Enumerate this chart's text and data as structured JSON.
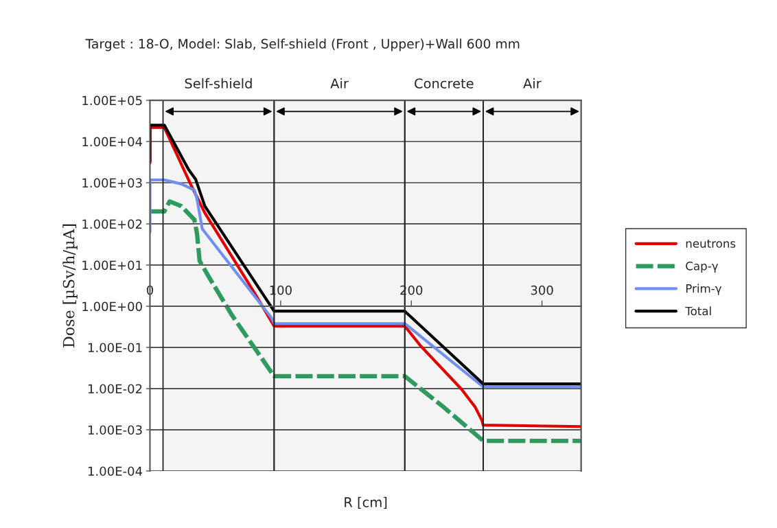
{
  "chart_data": {
    "type": "line",
    "title": "Target : 18-O, Model: Slab, Self-shield (Front , Upper)+Wall 600 mm",
    "xlabel": "R [cm]",
    "ylabel": "Dose [µSv/h/µA]",
    "log": "y",
    "xlim": [
      0,
      330
    ],
    "xticks": [
      0,
      100,
      200,
      300
    ],
    "ylim": [
      0.0001,
      100000
    ],
    "yticks": [
      {
        "value": 100000,
        "label": "1.00E+05"
      },
      {
        "value": 10000,
        "label": "1.00E+04"
      },
      {
        "value": 1000,
        "label": "1.00E+03"
      },
      {
        "value": 100,
        "label": "1.00E+02"
      },
      {
        "value": 10,
        "label": "1.00E+01"
      },
      {
        "value": 1,
        "label": "1.00E+00"
      },
      {
        "value": 0.1,
        "label": "1.00E-01"
      },
      {
        "value": 0.01,
        "label": "1.00E-02"
      },
      {
        "value": 0.001,
        "label": "1.00E-03"
      },
      {
        "value": 0.0001,
        "label": "1.00E-04"
      }
    ],
    "grid": "y",
    "legend": "right",
    "bands": [
      {
        "axis": "x",
        "from": 10,
        "to": 95,
        "label": "Self-shield",
        "color": "#f4f4f4"
      },
      {
        "axis": "x",
        "from": 95,
        "to": 195,
        "label": "Air",
        "color": "#f4f4f4"
      },
      {
        "axis": "x",
        "from": 195,
        "to": 255,
        "label": "Concrete",
        "color": "#f4f4f4"
      },
      {
        "axis": "x",
        "from": 255,
        "to": 330,
        "label": "Air",
        "color": "#f4f4f4"
      }
    ],
    "series": [
      {
        "name": "neutrons",
        "color": "#e00000",
        "line_style": "solid",
        "x": [
          0,
          0,
          11,
          31,
          42,
          80,
          95,
          195,
          207,
          238.5,
          249,
          254,
          255,
          330
        ],
        "values": [
          3000,
          22000,
          22000,
          930,
          185,
          2.1,
          0.33,
          0.33,
          0.11,
          0.0096,
          0.0035,
          0.0017,
          0.0013,
          0.0012
        ]
      },
      {
        "name": "Cap-γ",
        "color": "#2e9a5e",
        "line_style": "dashed",
        "x": [
          0,
          11,
          15,
          24,
          34,
          36,
          38,
          45,
          63,
          95,
          195,
          225,
          255,
          330
        ],
        "values": [
          200,
          200,
          350,
          270,
          126,
          58,
          12.6,
          5.2,
          0.59,
          0.02,
          0.02,
          0.0035,
          0.00054,
          0.00054
        ]
      },
      {
        "name": "Prim-γ",
        "color": "#7090f0",
        "line_style": "solid",
        "x": [
          0,
          0,
          11,
          24,
          34,
          36,
          40,
          93,
          95,
          195,
          255,
          330
        ],
        "values": [
          63,
          1170,
          1170,
          930,
          660,
          400,
          76,
          0.52,
          0.38,
          0.38,
          0.011,
          0.011
        ]
      },
      {
        "name": "Total",
        "color": "#000000",
        "line_style": "solid",
        "x": [
          0,
          0,
          11,
          29.5,
          35,
          42,
          95,
          195,
          255,
          330
        ],
        "values": [
          3300,
          25000,
          25000,
          2100,
          1200,
          270,
          0.76,
          0.76,
          0.013,
          0.013
        ]
      }
    ]
  }
}
